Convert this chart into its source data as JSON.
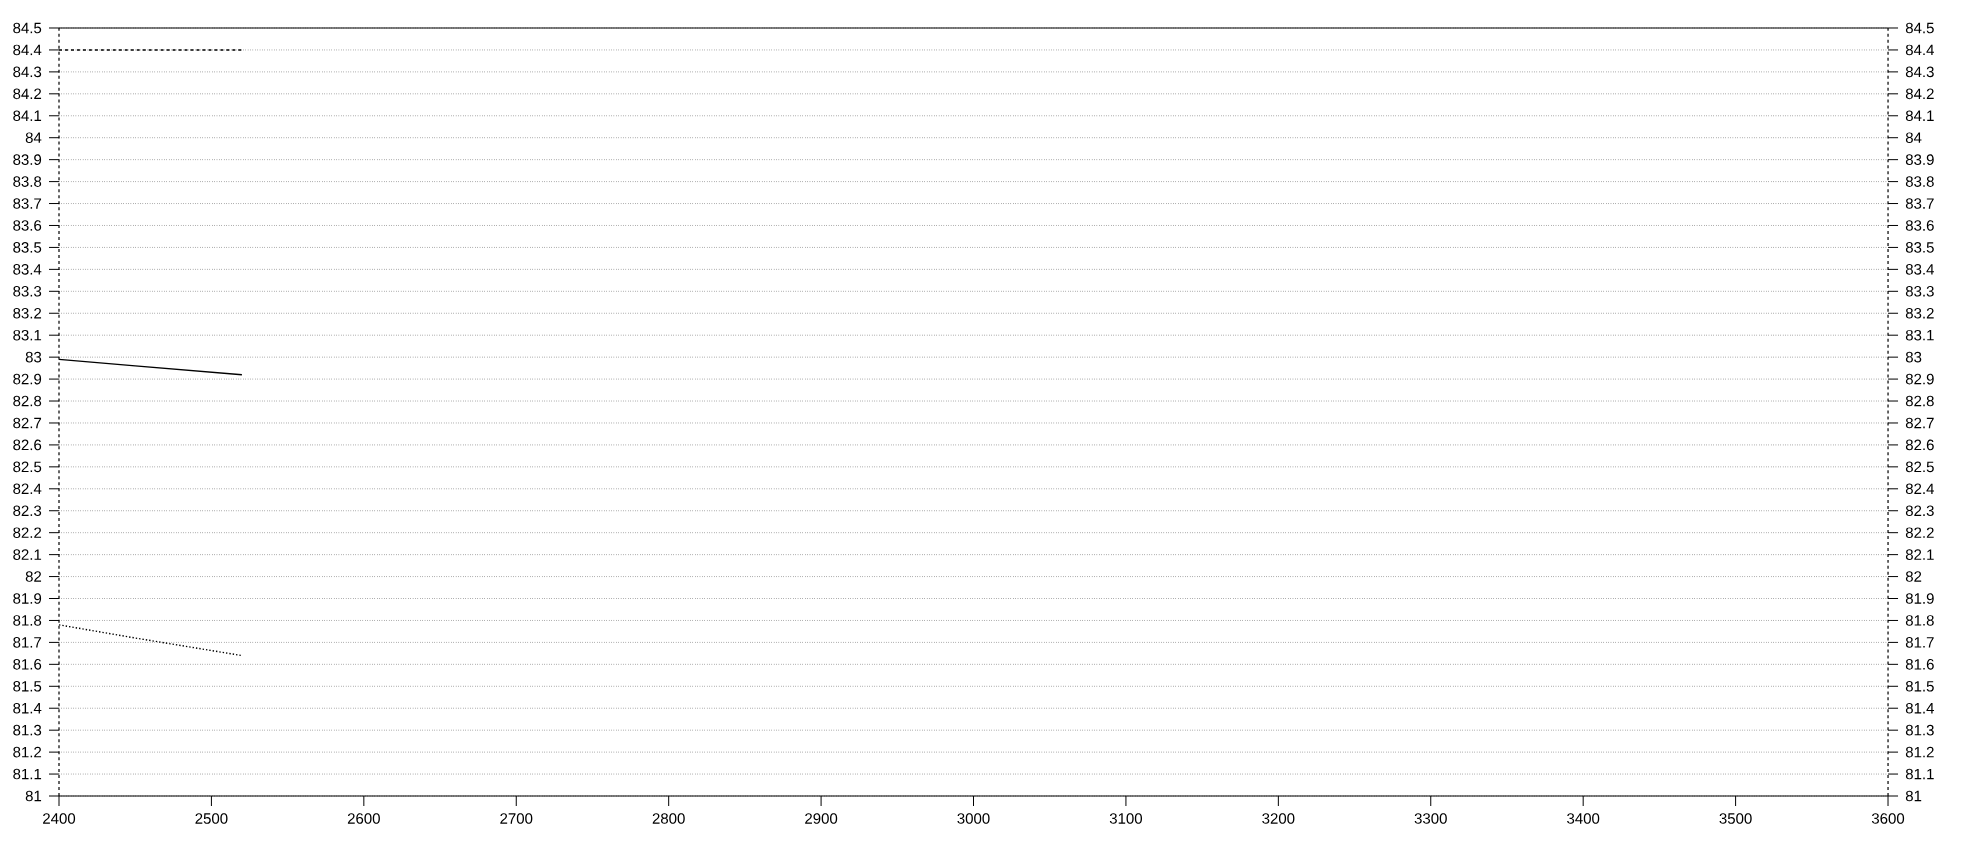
{
  "chart_data": {
    "type": "line",
    "x": [
      2400,
      2450,
      2520
    ],
    "series": [
      {
        "color": "#000000",
        "line_style": "dashed",
        "values": [
          84.4,
          84.4,
          84.4
        ]
      },
      {
        "color": "#000000",
        "line_style": "solid",
        "values": [
          82.99,
          82.96,
          82.92
        ]
      },
      {
        "color": "#000000",
        "line_style": "dotted",
        "values": [
          81.78,
          81.72,
          81.64
        ]
      }
    ],
    "xlim": [
      2400,
      3600
    ],
    "xticks": [
      2400,
      2500,
      2600,
      2700,
      2800,
      2900,
      3000,
      3100,
      3200,
      3300,
      3400,
      3500,
      3600
    ],
    "ylim": [
      81,
      84.5
    ],
    "yticks": [
      81,
      81.1,
      81.2,
      81.3,
      81.4,
      81.5,
      81.6,
      81.7,
      81.8,
      81.9,
      82,
      82.1,
      82.2,
      82.3,
      82.4,
      82.5,
      82.6,
      82.7,
      82.8,
      82.9,
      83,
      83.1,
      83.2,
      83.3,
      83.4,
      83.5,
      83.6,
      83.7,
      83.8,
      83.9,
      84,
      84.1,
      84.2,
      84.3,
      84.4,
      84.5
    ],
    "y2lim": [
      81,
      84.5
    ],
    "y2ticks": [
      81,
      81.1,
      81.2,
      81.3,
      81.4,
      81.5,
      81.6,
      81.7,
      81.8,
      81.9,
      82,
      82.1,
      82.2,
      82.3,
      82.4,
      82.5,
      82.6,
      82.7,
      82.8,
      82.9,
      83,
      83.1,
      83.2,
      83.3,
      83.4,
      83.5,
      83.6,
      83.7,
      83.8,
      83.9,
      84,
      84.1,
      84.2,
      84.3,
      84.4,
      84.5
    ],
    "grid": "y"
  }
}
